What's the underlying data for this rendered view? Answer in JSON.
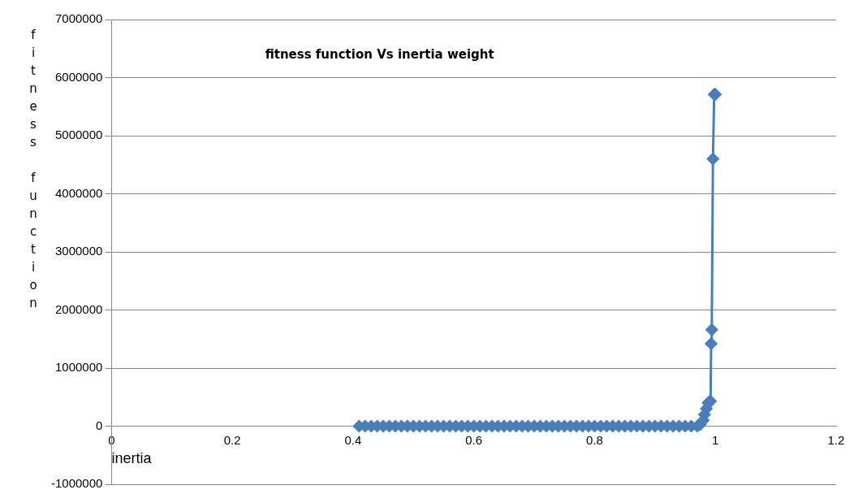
{
  "chart_data": {
    "type": "line",
    "title": "fitness function Vs inertia weight",
    "xlabel": "inertia",
    "ylabel": "fitness function",
    "x": [
      0.41,
      0.42,
      0.43,
      0.44,
      0.45,
      0.46,
      0.47,
      0.48,
      0.49,
      0.5,
      0.51,
      0.52,
      0.53,
      0.54,
      0.55,
      0.56,
      0.57,
      0.58,
      0.59,
      0.6,
      0.61,
      0.62,
      0.63,
      0.64,
      0.65,
      0.66,
      0.67,
      0.68,
      0.69,
      0.7,
      0.71,
      0.72,
      0.73,
      0.74,
      0.75,
      0.76,
      0.77,
      0.78,
      0.79,
      0.8,
      0.81,
      0.82,
      0.83,
      0.84,
      0.85,
      0.86,
      0.87,
      0.88,
      0.89,
      0.9,
      0.91,
      0.92,
      0.93,
      0.94,
      0.95,
      0.96,
      0.97,
      0.975,
      0.98,
      0.982,
      0.985,
      0.988,
      0.99,
      0.992,
      0.993,
      0.994,
      0.996,
      0.998,
      1.0
    ],
    "series": [
      {
        "color": "#4a7ebb",
        "values": [
          0,
          0,
          0,
          0,
          0,
          0,
          0,
          0,
          0,
          0,
          0,
          0,
          0,
          0,
          0,
          0,
          0,
          0,
          0,
          0,
          0,
          0,
          0,
          0,
          0,
          0,
          0,
          0,
          0,
          0,
          0,
          0,
          0,
          0,
          0,
          0,
          0,
          0,
          0,
          0,
          0,
          0,
          0,
          0,
          0,
          0,
          0,
          0,
          0,
          0,
          0,
          0,
          0,
          0,
          0,
          0,
          0,
          30000,
          100000,
          200000,
          300000,
          400000,
          420000,
          430000,
          1420000,
          1660000,
          4600000,
          5710000,
          5710000
        ]
      }
    ],
    "xlim": [
      0,
      1.2
    ],
    "xticks": [
      0,
      0.2,
      0.4,
      0.6,
      0.8,
      1,
      1.2
    ],
    "ylim": [
      -1000000,
      7000000
    ],
    "yticks": [
      -1000000,
      0,
      1000000,
      2000000,
      3000000,
      4000000,
      5000000,
      6000000,
      7000000
    ],
    "grid": "y",
    "legend": false,
    "marker": "diamond",
    "line_style": "solid"
  }
}
